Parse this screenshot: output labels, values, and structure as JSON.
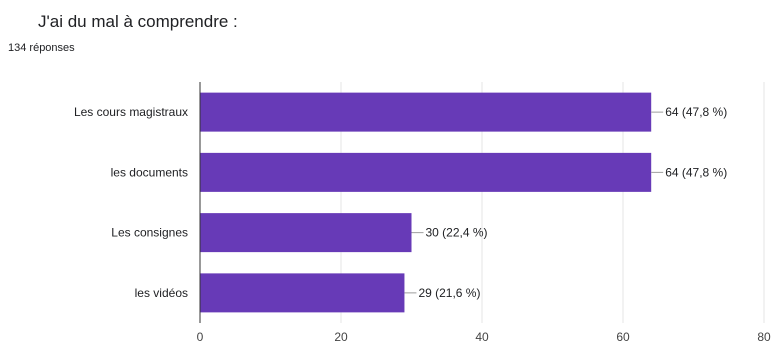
{
  "question": {
    "title": "J'ai du mal à comprendre :",
    "response_count": "134 réponses"
  },
  "colors": {
    "bar": "#673AB7",
    "grid": "#e6e6e6",
    "axis": "#333333",
    "leader": "#9e9e9e"
  },
  "chart_data": {
    "type": "bar",
    "orientation": "horizontal",
    "categories": [
      "Les cours magistraux",
      "les documents",
      "Les consignes",
      "les vidéos"
    ],
    "values": [
      64,
      64,
      30,
      29
    ],
    "data_labels": [
      "64 (47,8 %)",
      "64 (47,8 %)",
      "30 (22,4 %)",
      "29 (21,6 %)"
    ],
    "xlim": [
      0,
      80
    ],
    "x_ticks": [
      "0",
      "20",
      "40",
      "60",
      "80"
    ],
    "grid": true,
    "legend": "none"
  }
}
